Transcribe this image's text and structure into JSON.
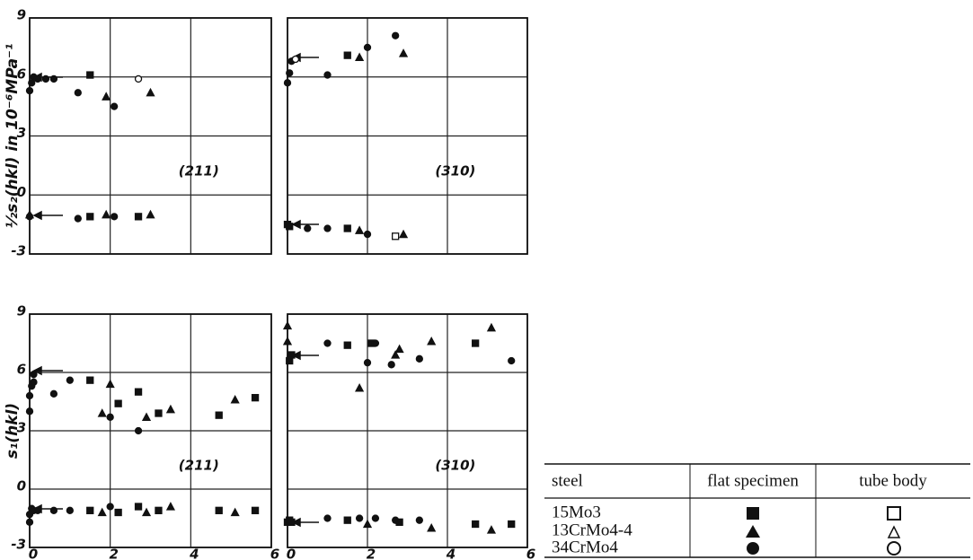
{
  "chart_data": [
    {
      "type": "scatter",
      "ylabel": "½s₂(hkl) in 10⁻⁶MPa⁻¹",
      "annotation": "(211)",
      "xlim": [
        0,
        6
      ],
      "ylim": [
        -3,
        9
      ],
      "xticks": [
        0,
        2,
        4,
        6
      ],
      "yticks": [
        -3,
        0,
        3,
        6,
        9
      ],
      "xtick_labels": false,
      "ytick_labels": true,
      "grid": true,
      "color": "#111111",
      "series": [
        {
          "marker": "square",
          "filled": true,
          "x": [
            1.5,
            1.5,
            2.7
          ],
          "y": [
            6.1,
            -1.1,
            -1.1
          ]
        },
        {
          "marker": "triangle",
          "filled": true,
          "x": [
            1.9,
            3,
            0,
            1.9,
            3
          ],
          "y": [
            5.0,
            5.2,
            -1,
            -1.0,
            -1.0
          ]
        },
        {
          "marker": "circle",
          "filled": true,
          "x": [
            0,
            0.05,
            0.1,
            0.2,
            0.4,
            0.6,
            1.2,
            2.1,
            0,
            1.2,
            2.1
          ],
          "y": [
            5.3,
            5.7,
            6,
            5.9,
            5.9,
            5.9,
            5.2,
            4.5,
            -1.1,
            -1.2,
            -1.1
          ]
        },
        {
          "marker": "circle",
          "filled": false,
          "x": [
            2.7
          ],
          "y": [
            5.9
          ]
        }
      ]
    },
    {
      "type": "scatter",
      "annotation": "(310)",
      "xlim": [
        0,
        6
      ],
      "ylim": [
        -3,
        9
      ],
      "xticks": [
        0,
        2,
        4,
        6
      ],
      "yticks": [
        -3,
        0,
        3,
        6,
        9
      ],
      "xtick_labels": false,
      "ytick_labels": false,
      "grid": true,
      "color": "#111111",
      "series": [
        {
          "marker": "square",
          "filled": true,
          "x": [
            1.5,
            0,
            0.05,
            1.5
          ],
          "y": [
            7.1,
            -1.5,
            -1.6,
            -1.7
          ]
        },
        {
          "marker": "triangle",
          "filled": true,
          "x": [
            1.8,
            2.9,
            1.8,
            2.9
          ],
          "y": [
            7.0,
            7.2,
            -1.8,
            -2.0
          ]
        },
        {
          "marker": "circle",
          "filled": true,
          "x": [
            0,
            0.05,
            0.1,
            1,
            2,
            2.7,
            0.5,
            1,
            2
          ],
          "y": [
            5.7,
            6.2,
            6.8,
            6.1,
            7.5,
            8.1,
            -1.7,
            -1.7,
            -2.0
          ]
        },
        {
          "marker": "circle",
          "filled": false,
          "x": [
            0.2
          ],
          "y": [
            6.9
          ]
        },
        {
          "marker": "square",
          "filled": false,
          "x": [
            2.7
          ],
          "y": [
            -2.1
          ]
        }
      ]
    },
    {
      "type": "scatter",
      "ylabel": "s₁(hkl)",
      "annotation": "(211)",
      "xlim": [
        0,
        6
      ],
      "ylim": [
        -3,
        9
      ],
      "xticks": [
        0,
        2,
        4,
        6
      ],
      "yticks": [
        -3,
        0,
        3,
        6,
        9
      ],
      "xtick_labels": true,
      "ytick_labels": true,
      "grid": true,
      "color": "#111111",
      "series": [
        {
          "marker": "square",
          "filled": true,
          "x": [
            1.5,
            2.2,
            2.7,
            3.2,
            4.7,
            5.6,
            1.5,
            2.2,
            2.7,
            3.2,
            4.7,
            5.6
          ],
          "y": [
            5.6,
            4.4,
            5.0,
            3.9,
            3.8,
            4.7,
            -1.1,
            -1.2,
            -0.9,
            -1.1,
            -1.1,
            -1.1
          ]
        },
        {
          "marker": "triangle",
          "filled": true,
          "x": [
            1.8,
            2,
            2.9,
            3.5,
            5.1,
            1.8,
            2.9,
            3.5,
            5.1
          ],
          "y": [
            3.9,
            5.4,
            3.7,
            4.1,
            4.6,
            -1.2,
            -1.2,
            -0.9,
            -1.2
          ]
        },
        {
          "marker": "circle",
          "filled": true,
          "x": [
            0,
            0,
            0.05,
            0.1,
            0.1,
            0.6,
            1,
            2,
            2.7,
            0,
            0,
            0.05,
            0.1,
            0.2,
            0.6,
            1,
            2
          ],
          "y": [
            4,
            4.8,
            5.3,
            5.5,
            5.9,
            4.9,
            5.6,
            3.7,
            3.0,
            -1.7,
            -1.3,
            -1.0,
            -1.1,
            -1.1,
            -1.1,
            -1.1,
            -0.9
          ]
        }
      ]
    },
    {
      "type": "scatter",
      "annotation": "(310)",
      "xlim": [
        0,
        6
      ],
      "ylim": [
        -3,
        9
      ],
      "xticks": [
        0,
        2,
        4,
        6
      ],
      "yticks": [
        -3,
        0,
        3,
        6,
        9
      ],
      "xtick_labels": true,
      "ytick_labels": false,
      "grid": true,
      "color": "#111111",
      "series": [
        {
          "marker": "square",
          "filled": true,
          "x": [
            0.1,
            0.05,
            1.5,
            2.1,
            4.7,
            0,
            0.05,
            0.1,
            1.5,
            2.8,
            4.7,
            5.6
          ],
          "y": [
            6.9,
            6.6,
            7.4,
            7.5,
            7.5,
            -1.7,
            -1.6,
            -1.7,
            -1.6,
            -1.7,
            -1.8,
            -1.8
          ]
        },
        {
          "marker": "triangle",
          "filled": true,
          "x": [
            0,
            0,
            1.8,
            2.7,
            2.8,
            3.6,
            5.1,
            2,
            3.6,
            5.1
          ],
          "y": [
            8.4,
            7.6,
            5.2,
            6.9,
            7.2,
            7.6,
            8.3,
            -1.8,
            -2.0,
            -2.1
          ]
        },
        {
          "marker": "circle",
          "filled": true,
          "x": [
            1,
            2,
            2.2,
            2.6,
            3.3,
            5.6,
            1,
            1.8,
            2.2,
            2.7,
            3.3
          ],
          "y": [
            7.5,
            6.5,
            7.5,
            6.4,
            6.7,
            6.6,
            -1.5,
            -1.5,
            -1.5,
            -1.6,
            -1.6
          ]
        }
      ]
    }
  ],
  "table": {
    "header": [
      "steel",
      "flat specimen",
      "tube body"
    ],
    "rows": [
      [
        "15Mo3"
      ],
      [
        "13CrMo4-4"
      ],
      [
        "34CrMo4"
      ]
    ]
  }
}
